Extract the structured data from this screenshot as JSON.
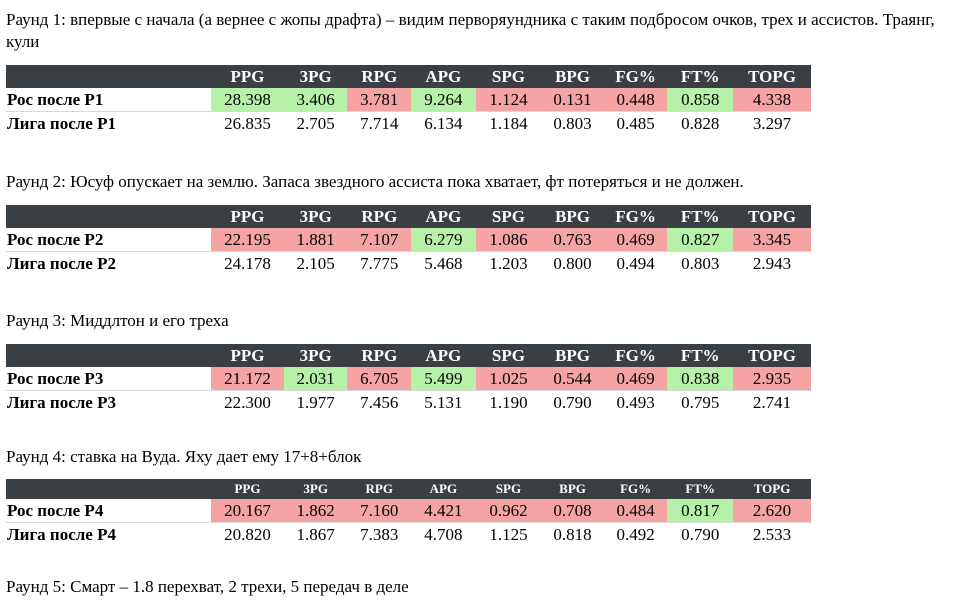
{
  "headers": [
    "",
    "PPG",
    "3PG",
    "RPG",
    "APG",
    "SPG",
    "BPG",
    "FG%",
    "FT%",
    "TOPG"
  ],
  "colors": {
    "header_bg": "#3a3f44",
    "good": "#b7f0a8",
    "bad": "#f5a3a3"
  },
  "rounds": [
    {
      "text": "Раунд 1: впервые с начала (а вернее с жопы драфта) – видим перворяундника с таким подбросом очков, трех и ассистов. Траянг, кули",
      "ros": {
        "label": "Рос после Р1",
        "values": [
          "28.398",
          "3.406",
          "3.781",
          "9.264",
          "1.124",
          "0.131",
          "0.448",
          "0.858",
          "4.338"
        ],
        "status": [
          "good",
          "good",
          "bad",
          "good",
          "bad",
          "bad",
          "bad",
          "good",
          "bad"
        ]
      },
      "league": {
        "label": "Лига после Р1",
        "values": [
          "26.835",
          "2.705",
          "7.714",
          "6.134",
          "1.184",
          "0.803",
          "0.485",
          "0.828",
          "3.297"
        ]
      }
    },
    {
      "text": "Раунд 2: Юсуф опускает на землю. Запаса звездного ассиста пока хватает, фт потеряться и не должен.",
      "ros": {
        "label": "Рос после Р2",
        "values": [
          "22.195",
          "1.881",
          "7.107",
          "6.279",
          "1.086",
          "0.763",
          "0.469",
          "0.827",
          "3.345"
        ],
        "status": [
          "bad",
          "bad",
          "bad",
          "good",
          "bad",
          "bad",
          "bad",
          "good",
          "bad"
        ]
      },
      "league": {
        "label": "Лига после Р2",
        "values": [
          "24.178",
          "2.105",
          "7.775",
          "5.468",
          "1.203",
          "0.800",
          "0.494",
          "0.803",
          "2.943"
        ]
      }
    },
    {
      "text": "Раунд 3: Миддлтон и его треха",
      "ros": {
        "label": "Рос после Р3",
        "values": [
          "21.172",
          "2.031",
          "6.705",
          "5.499",
          "1.025",
          "0.544",
          "0.469",
          "0.838",
          "2.935"
        ],
        "status": [
          "bad",
          "good",
          "bad",
          "good",
          "bad",
          "bad",
          "bad",
          "good",
          "bad"
        ]
      },
      "league": {
        "label": "Лига после Р3",
        "values": [
          "22.300",
          "1.977",
          "7.456",
          "5.131",
          "1.190",
          "0.790",
          "0.493",
          "0.795",
          "2.741"
        ]
      }
    },
    {
      "text": "Раунд 4: ставка на Вуда. Яху дает ему 17+8+блок",
      "ros": {
        "label": "Рос после Р4",
        "values": [
          "20.167",
          "1.862",
          "7.160",
          "4.421",
          "0.962",
          "0.708",
          "0.484",
          "0.817",
          "2.620"
        ],
        "status": [
          "bad",
          "bad",
          "bad",
          "bad",
          "bad",
          "bad",
          "bad",
          "good",
          "bad"
        ]
      },
      "league": {
        "label": "Лига после Р4",
        "values": [
          "20.820",
          "1.867",
          "7.383",
          "4.708",
          "1.125",
          "0.818",
          "0.492",
          "0.790",
          "2.533"
        ]
      }
    }
  ],
  "round5_text": "Раунд 5: Смарт – 1.8 перехват, 2 трехи, 5 передач в деле"
}
